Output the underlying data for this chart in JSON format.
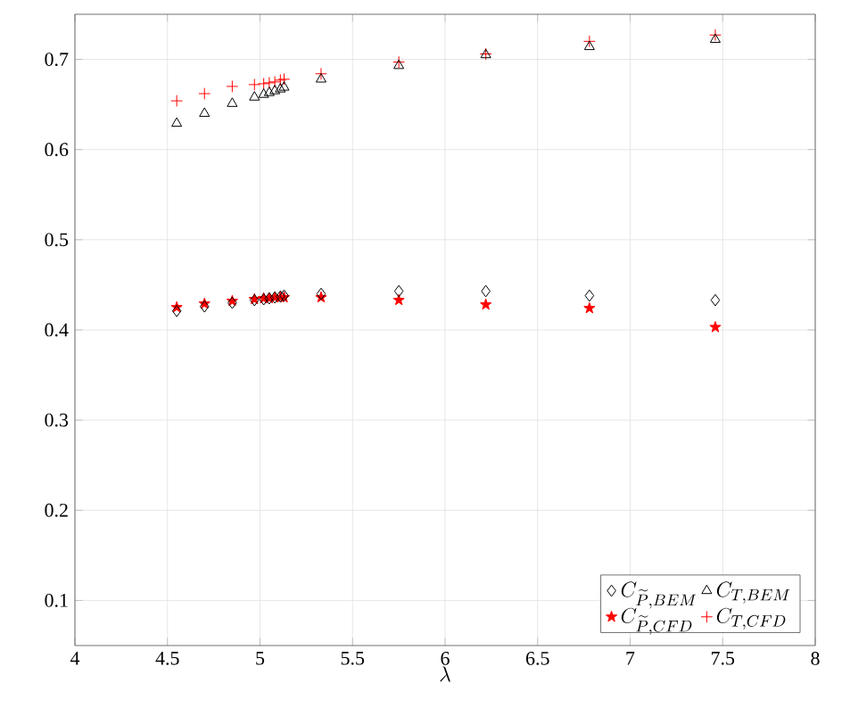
{
  "chart_data": {
    "type": "scatter",
    "xlabel": "\\lambda",
    "xlim": [
      4,
      8
    ],
    "ylim": [
      0.05,
      0.75
    ],
    "xticks": [
      4,
      4.5,
      5,
      5.5,
      6,
      6.5,
      7,
      7.5,
      8
    ],
    "yticks": [
      0.1,
      0.2,
      0.3,
      0.4,
      0.5,
      0.6,
      0.7
    ],
    "grid": true,
    "legend": "bottom right",
    "x": [
      4.55,
      4.7,
      4.85,
      4.97,
      5.02,
      5.05,
      5.08,
      5.11,
      5.13,
      5.33,
      5.75,
      6.22,
      6.78,
      7.46
    ],
    "series": [
      {
        "name": "C_{\\widetilde{P},BEM}",
        "color": "#000000",
        "marker": "diamond",
        "values": [
          0.421,
          0.426,
          0.43,
          0.433,
          0.434,
          0.435,
          0.436,
          0.437,
          0.438,
          0.44,
          0.443,
          0.443,
          0.438,
          0.433
        ]
      },
      {
        "name": "C_{T,BEM}",
        "color": "#000000",
        "marker": "triangle",
        "values": [
          0.629,
          0.64,
          0.651,
          0.658,
          0.661,
          0.663,
          0.665,
          0.667,
          0.669,
          0.678,
          0.693,
          0.705,
          0.714,
          0.722
        ]
      },
      {
        "name": "C_{\\widetilde{P},CFD}",
        "color": "#ff0000",
        "marker": "star",
        "values": [
          0.425,
          0.429,
          0.432,
          0.434,
          0.435,
          0.435,
          0.436,
          0.436,
          0.436,
          0.436,
          0.433,
          0.428,
          0.424,
          0.403
        ]
      },
      {
        "name": "C_{T,CFD}",
        "color": "#ff0000",
        "marker": "cross",
        "values": [
          0.654,
          0.662,
          0.67,
          0.672,
          0.673,
          0.674,
          0.675,
          0.677,
          0.678,
          0.684,
          0.697,
          0.706,
          0.72,
          0.727
        ]
      }
    ]
  }
}
